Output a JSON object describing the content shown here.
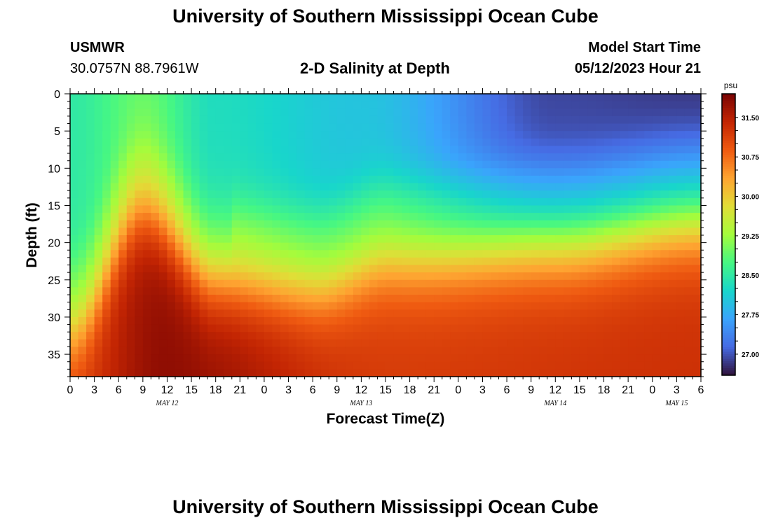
{
  "page": {
    "title_top": "University of Southern Mississippi Ocean Cube",
    "title_bottom": "University of Southern Mississippi Ocean Cube",
    "station_name": "USMWR",
    "station_coords": "30.0757N  88.7961W",
    "plot_title": "2-D Salinity at Depth",
    "model_start_label": "Model Start Time",
    "model_start_value": "05/12/2023 Hour 21"
  },
  "chart_data": {
    "type": "heatmap",
    "title": "2-D Salinity at Depth",
    "xlabel": "Forecast Time(Z)",
    "ylabel": "Depth (ft)",
    "x_ticks": [
      "0",
      "3",
      "6",
      "9",
      "12",
      "15",
      "18",
      "21",
      "0",
      "3",
      "6",
      "9",
      "12",
      "15",
      "18",
      "21",
      "0",
      "3",
      "6",
      "9",
      "12",
      "15",
      "18",
      "21",
      "0",
      "3",
      "6"
    ],
    "x_hours": [
      0,
      3,
      6,
      9,
      12,
      15,
      18,
      21,
      24,
      27,
      30,
      33,
      36,
      39,
      42,
      45,
      48,
      51,
      54,
      57,
      60,
      63,
      66,
      69,
      72,
      75,
      78
    ],
    "xlim": [
      0,
      78
    ],
    "date_labels": [
      {
        "text": "MAY 12",
        "hour": 12
      },
      {
        "text": "MAY 13",
        "hour": 36
      },
      {
        "text": "MAY 14",
        "hour": 60
      },
      {
        "text": "MAY 15",
        "hour": 75
      }
    ],
    "y_ticks": [
      "0",
      "5",
      "10",
      "15",
      "20",
      "25",
      "30",
      "35"
    ],
    "y_values": [
      0,
      5,
      10,
      15,
      20,
      25,
      30,
      35
    ],
    "ylim": [
      0,
      38
    ],
    "y_inverted": true,
    "colorbar": {
      "unit": "psu",
      "ticks": [
        "31.50",
        "30.75",
        "30.00",
        "29.25",
        "28.50",
        "27.75",
        "27.00"
      ],
      "tick_values": [
        31.5,
        30.75,
        30.0,
        29.25,
        28.5,
        27.75,
        27.0
      ],
      "range": [
        26.6,
        31.95
      ],
      "colormap": "turbo"
    },
    "field_description_points": {
      "surface_salinity_by_hour": [
        [
          0,
          28.5
        ],
        [
          9,
          28.9
        ],
        [
          18,
          28.3
        ],
        [
          36,
          28.0
        ],
        [
          60,
          26.9
        ],
        [
          78,
          26.8
        ]
      ],
      "bottom_salinity_by_hour": [
        [
          0,
          31.2
        ],
        [
          12,
          31.8
        ],
        [
          40,
          31.2
        ],
        [
          78,
          31.3
        ]
      ],
      "halocline_depth_ft_by_hour": [
        [
          0,
          31
        ],
        [
          9,
          15
        ],
        [
          18,
          24
        ],
        [
          30,
          25
        ],
        [
          40,
          21
        ],
        [
          60,
          19
        ],
        [
          78,
          16
        ]
      ]
    }
  }
}
